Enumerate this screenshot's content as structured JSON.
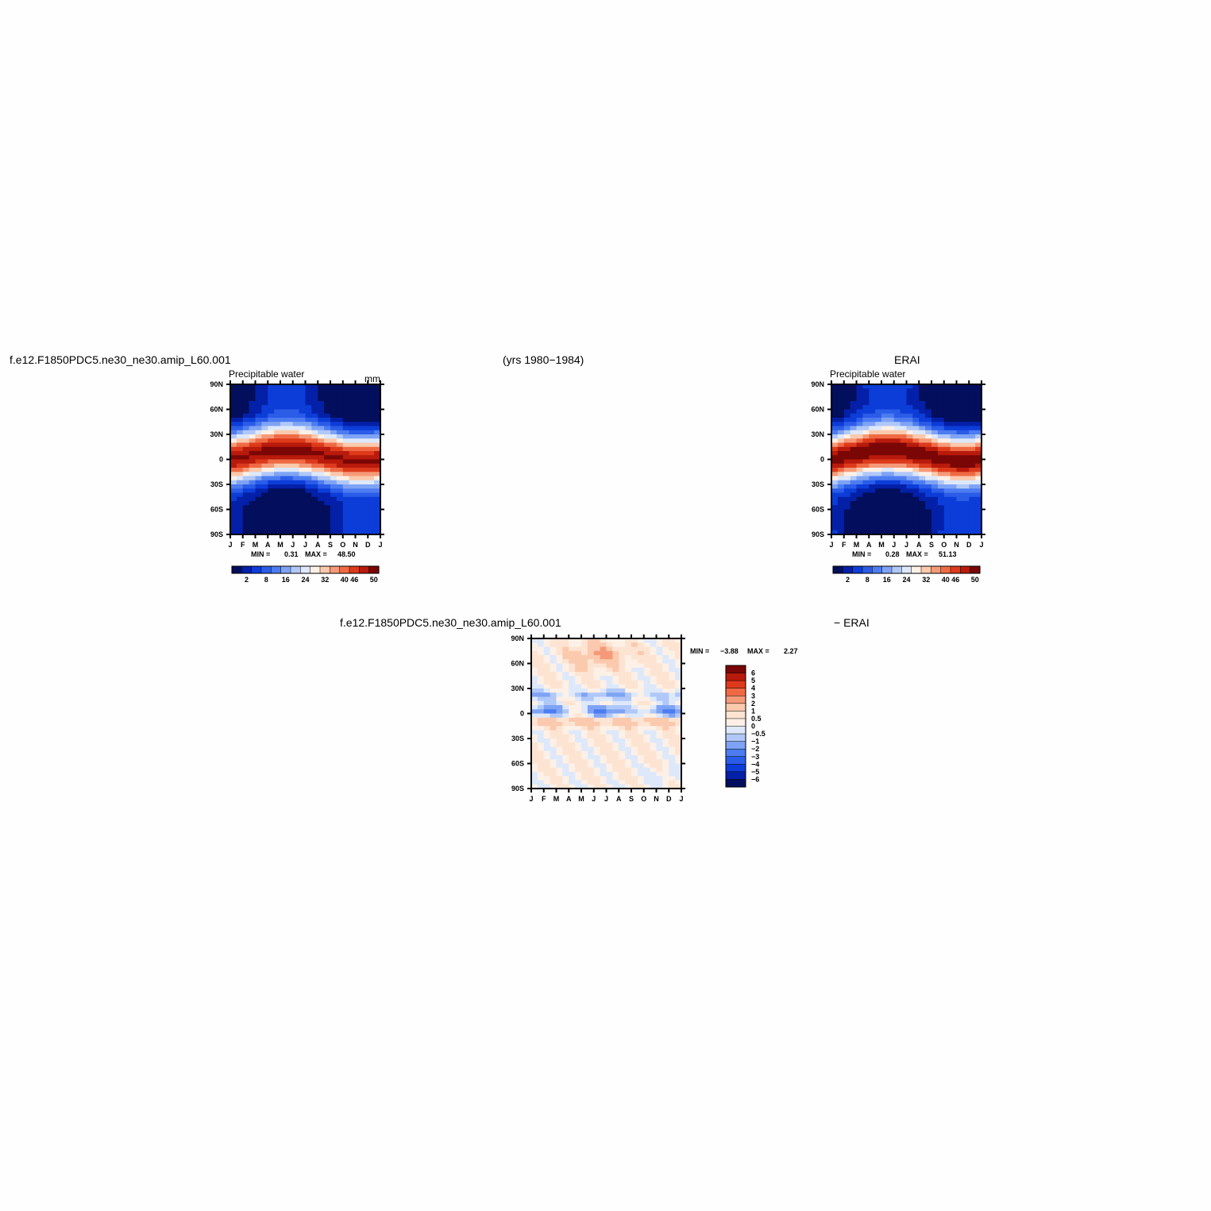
{
  "header": {
    "case_name": "f.e12.F1850PDC5.ne30_ne30.amip_L60.001",
    "years": "(yrs 1980−1984)",
    "obs_name": "ERAI",
    "diff_case": "f.e12.F1850PDC5.ne30_ne30.amip_L60.001",
    "diff_obs": "− ERAI"
  },
  "chart_data": [
    {
      "type": "heatmap",
      "title": "Precipitable water",
      "units": "mm",
      "x_categories": [
        "J",
        "F",
        "M",
        "A",
        "M",
        "J",
        "J",
        "A",
        "S",
        "O",
        "N",
        "D",
        "J"
      ],
      "y_tick_labels": [
        "90N",
        "60N",
        "30N",
        "0",
        "30S",
        "60S",
        "90S"
      ],
      "y_range": [
        -90,
        90
      ],
      "colorbar_labels": [
        "2",
        "8",
        "16",
        "24",
        "32",
        "40",
        "46",
        "50"
      ],
      "colorbar_colors": [
        "#030e5c",
        "#0420a8",
        "#0c3dd8",
        "#2b5ce8",
        "#4c7cf0",
        "#7fa3f4",
        "#b0c8f8",
        "#dde8fb",
        "#fdf0e6",
        "#fbc9ad",
        "#f59a78",
        "#ef6a44",
        "#dd3a1c",
        "#b81a0c",
        "#7a0606"
      ],
      "min_label": "MIN =",
      "min_value": "0.31",
      "max_label": "MAX =",
      "max_value": "48.50",
      "min_num": 0.31,
      "max_num": 48.5
    },
    {
      "type": "heatmap",
      "title": "Precipitable water",
      "x_categories": [
        "J",
        "F",
        "M",
        "A",
        "M",
        "J",
        "J",
        "A",
        "S",
        "O",
        "N",
        "D",
        "J"
      ],
      "y_tick_labels": [
        "90N",
        "60N",
        "30N",
        "0",
        "30S",
        "60S",
        "90S"
      ],
      "y_range": [
        -90,
        90
      ],
      "colorbar_labels": [
        "2",
        "8",
        "16",
        "24",
        "32",
        "40",
        "46",
        "50"
      ],
      "colorbar_colors": [
        "#030e5c",
        "#0420a8",
        "#0c3dd8",
        "#2b5ce8",
        "#4c7cf0",
        "#7fa3f4",
        "#b0c8f8",
        "#dde8fb",
        "#fdf0e6",
        "#fbc9ad",
        "#f59a78",
        "#ef6a44",
        "#dd3a1c",
        "#b81a0c",
        "#7a0606"
      ],
      "min_label": "MIN =",
      "min_value": "0.28",
      "max_label": "MAX =",
      "max_value": "51.13",
      "min_num": 0.28,
      "max_num": 51.13
    },
    {
      "type": "heatmap",
      "x_categories": [
        "J",
        "F",
        "M",
        "A",
        "M",
        "J",
        "J",
        "A",
        "S",
        "O",
        "N",
        "D",
        "J"
      ],
      "y_tick_labels": [
        "90N",
        "60N",
        "30N",
        "0",
        "30S",
        "60S",
        "90S"
      ],
      "y_range": [
        -90,
        90
      ],
      "colorbar_labels": [
        "6",
        "5",
        "4",
        "3",
        "2",
        "1",
        "0.5",
        "0",
        "−0.5",
        "−1",
        "−2",
        "−3",
        "−4",
        "−5",
        "−6"
      ],
      "colorbar_colors": [
        "#7a0606",
        "#b81a0c",
        "#dd3a1c",
        "#ef6a44",
        "#f59a78",
        "#fbc9ad",
        "#fde4d2",
        "#fdf0e6",
        "#dde8fb",
        "#b0c8f8",
        "#7fa3f4",
        "#4c7cf0",
        "#2b5ce8",
        "#0c3dd8",
        "#0420a8",
        "#030e5c"
      ],
      "min_label": "MIN =",
      "min_value": "−3.88",
      "max_label": "MAX =",
      "max_value": "2.27",
      "min_num": -3.88,
      "max_num": 2.27
    }
  ]
}
